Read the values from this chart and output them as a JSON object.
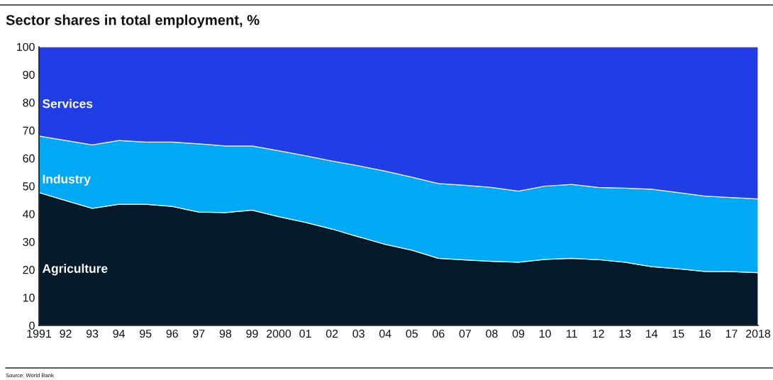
{
  "chart_data": {
    "type": "area",
    "stacked": true,
    "title": "Sector shares in total employment, %",
    "annotations": [
      "Source: World Bank"
    ],
    "categories": [
      "1991",
      "92",
      "93",
      "94",
      "95",
      "96",
      "97",
      "98",
      "99",
      "2000",
      "01",
      "02",
      "03",
      "04",
      "05",
      "06",
      "07",
      "08",
      "09",
      "10",
      "11",
      "12",
      "13",
      "14",
      "15",
      "16",
      "17",
      "2018"
    ],
    "series": [
      {
        "name": "Agriculture",
        "color": "#051a2b",
        "values": [
          47.7,
          44.8,
          42.0,
          43.5,
          43.5,
          42.7,
          40.7,
          40.5,
          41.4,
          39.0,
          37.0,
          34.6,
          31.8,
          29.1,
          27.0,
          24.1,
          23.5,
          23.0,
          22.7,
          23.7,
          24.1,
          23.6,
          22.7,
          21.1,
          20.3,
          19.4,
          19.3,
          18.9
        ]
      },
      {
        "name": "Industry",
        "color": "#00a9f4",
        "values": [
          20.3,
          21.6,
          22.8,
          22.9,
          22.3,
          23.1,
          24.5,
          23.9,
          23.0,
          23.7,
          23.9,
          24.4,
          25.5,
          26.3,
          26.2,
          26.8,
          26.8,
          26.5,
          25.5,
          26.3,
          26.5,
          25.9,
          26.6,
          27.8,
          27.4,
          27.0,
          26.6,
          26.5
        ]
      },
      {
        "name": "Services",
        "color": "#203de6",
        "values": [
          32.0,
          33.6,
          35.2,
          33.6,
          34.2,
          34.2,
          34.8,
          35.6,
          35.6,
          37.3,
          39.1,
          41.0,
          42.7,
          44.6,
          46.8,
          49.1,
          49.7,
          50.5,
          51.8,
          50.0,
          49.4,
          50.5,
          50.7,
          51.1,
          52.3,
          53.6,
          54.1,
          54.6
        ]
      }
    ],
    "ylim": [
      0,
      100
    ],
    "yticks": [
      0,
      10,
      20,
      30,
      40,
      50,
      60,
      70,
      80,
      90,
      100
    ]
  }
}
